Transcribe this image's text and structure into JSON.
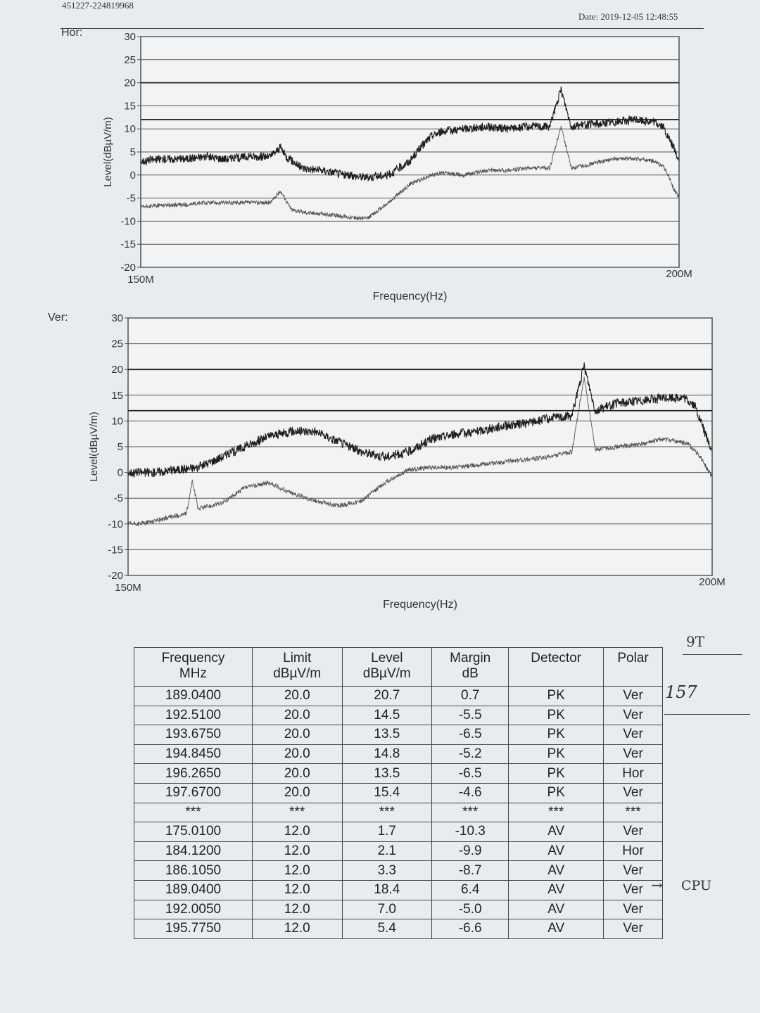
{
  "header": {
    "report_id": "451227-224819968",
    "date": "Date: 2019-12-05 12:48:55"
  },
  "charts": [
    {
      "panel_label": "Hor:",
      "chart_data": {
        "type": "line",
        "x_unit": "Hz",
        "xlabel": "Frequency(Hz)",
        "ylabel": "Level(dBµV/m)",
        "xlim": [
          150,
          200
        ],
        "x_tick_labels": [
          "150M",
          "200M"
        ],
        "ylim": [
          -20,
          30
        ],
        "y_ticks": [
          30,
          25,
          20,
          15,
          10,
          5,
          0,
          -5,
          -10,
          -15,
          -20
        ],
        "grid": true,
        "limit_lines": [
          12,
          20
        ],
        "series": [
          {
            "style": "peak",
            "x": [
              150,
              152,
              154,
              156,
              158,
              160,
              162,
              163,
              163.5,
              165,
              167,
              169,
              171,
              173,
              175,
              176,
              177,
              178,
              180,
              182,
              184,
              186,
              188,
              189.04,
              190,
              192,
              194,
              196,
              197.6,
              198.5,
              199,
              199.5,
              200
            ],
            "y": [
              3,
              3.5,
              3.5,
              4,
              3.5,
              4,
              4,
              6,
              4,
              1.5,
              1,
              0,
              -0.5,
              0,
              3,
              6,
              8.5,
              9.5,
              10,
              10.5,
              10,
              10.5,
              10.5,
              18.5,
              10.5,
              11,
              11.5,
              12,
              11.5,
              10.5,
              8,
              6,
              3
            ]
          },
          {
            "style": "average",
            "x": [
              150,
              152,
              154,
              156,
              158,
              160,
              162,
              163,
              163.5,
              164,
              165,
              167,
              169,
              171,
              173,
              175,
              177,
              178,
              180,
              182,
              184,
              186,
              188,
              189.04,
              190,
              192,
              194,
              196,
              197.6,
              198.5,
              199,
              199.5,
              200
            ],
            "y": [
              -7,
              -6.5,
              -6.5,
              -6,
              -6,
              -6,
              -6,
              -3.5,
              -5.5,
              -7.5,
              -8,
              -8.5,
              -9,
              -9.5,
              -6,
              -2,
              0,
              0.5,
              0,
              1,
              1,
              1.5,
              1.5,
              10.5,
              1.5,
              2.5,
              3.5,
              3.5,
              3,
              2,
              0,
              -3,
              -5
            ]
          }
        ]
      }
    },
    {
      "panel_label": "Ver:",
      "chart_data": {
        "type": "line",
        "x_unit": "Hz",
        "xlabel": "Frequency(Hz)",
        "ylabel": "Level(dBµV/m)",
        "xlim": [
          150,
          200
        ],
        "x_tick_labels": [
          "150M",
          "200M"
        ],
        "ylim": [
          -20,
          30
        ],
        "y_ticks": [
          30,
          25,
          20,
          15,
          10,
          5,
          0,
          -5,
          -10,
          -15,
          -20
        ],
        "grid": true,
        "limit_lines": [
          12,
          20
        ],
        "series": [
          {
            "style": "peak",
            "x": [
              150,
              152,
              154,
              156,
              158,
              160,
              162,
              164,
              166,
              168,
              170,
              172,
              174,
              176,
              178,
              180,
              182,
              184,
              186,
              188,
              189.04,
              190,
              192,
              194,
              196,
              197.5,
              198.5,
              199,
              200
            ],
            "y": [
              0,
              0,
              0.5,
              1,
              3,
              5,
              7,
              8,
              8,
              6,
              4,
              3,
              4,
              6.5,
              7.5,
              8,
              9,
              9.5,
              10.5,
              11,
              20.7,
              12,
              13.5,
              14,
              14.5,
              14.5,
              13,
              10,
              4
            ]
          },
          {
            "style": "average",
            "x": [
              150,
              151,
              152,
              154,
              155,
              155.5,
              156,
              158,
              160,
              162,
              164,
              166,
              168,
              170,
              172,
              174,
              176,
              178,
              180,
              182,
              184,
              186,
              188,
              189.04,
              190,
              192,
              194,
              195.8,
              197,
              198,
              199,
              200
            ],
            "y": [
              -10,
              -10,
              -9.5,
              -8.5,
              -8,
              -1.7,
              -7,
              -6,
              -3,
              -2,
              -4,
              -5.5,
              -6.5,
              -5.5,
              -2,
              0.5,
              1,
              1,
              1.5,
              2,
              2.5,
              3,
              4,
              18.4,
              4.5,
              5,
              5.5,
              6.5,
              6,
              5.5,
              3,
              -1
            ]
          }
        ]
      }
    }
  ],
  "table": {
    "headers": [
      [
        "Frequency",
        "MHz"
      ],
      [
        "Limit",
        "dBµV/m"
      ],
      [
        "Level",
        "dBµV/m"
      ],
      [
        "Margin",
        "dB"
      ],
      [
        "Detector",
        ""
      ],
      [
        "Polar",
        ""
      ]
    ],
    "rows": [
      [
        "189.0400",
        "20.0",
        "20.7",
        "0.7",
        "PK",
        "Ver"
      ],
      [
        "192.5100",
        "20.0",
        "14.5",
        "-5.5",
        "PK",
        "Ver"
      ],
      [
        "193.6750",
        "20.0",
        "13.5",
        "-6.5",
        "PK",
        "Ver"
      ],
      [
        "194.8450",
        "20.0",
        "14.8",
        "-5.2",
        "PK",
        "Ver"
      ],
      [
        "196.2650",
        "20.0",
        "13.5",
        "-6.5",
        "PK",
        "Hor"
      ],
      [
        "197.6700",
        "20.0",
        "15.4",
        "-4.6",
        "PK",
        "Ver"
      ],
      [
        "***",
        "***",
        "***",
        "***",
        "***",
        "***"
      ],
      [
        "175.0100",
        "12.0",
        "1.7",
        "-10.3",
        "AV",
        "Ver"
      ],
      [
        "184.1200",
        "12.0",
        "2.1",
        "-9.9",
        "AV",
        "Hor"
      ],
      [
        "186.1050",
        "12.0",
        "3.3",
        "-8.7",
        "AV",
        "Ver"
      ],
      [
        "189.0400",
        "12.0",
        "18.4",
        "6.4",
        "AV",
        "Ver"
      ],
      [
        "192.0050",
        "12.0",
        "7.0",
        "-5.0",
        "AV",
        "Ver"
      ],
      [
        "195.7750",
        "12.0",
        "5.4",
        "-6.6",
        "AV",
        "Ver"
      ]
    ]
  },
  "annotations": {
    "note1": "9T",
    "note2": "157",
    "arrow_note": "CPU"
  }
}
